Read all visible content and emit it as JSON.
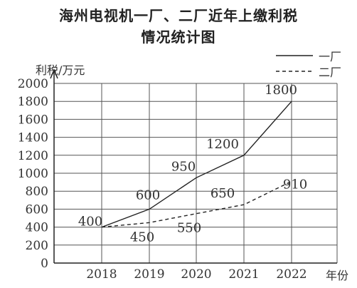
{
  "title": {
    "line1": "海州电视机一厂、二厂近年上缴利税",
    "line2": "情况统计图"
  },
  "chart_data": {
    "type": "line",
    "title": "海州电视机一厂、二厂近年上缴利税情况统计图",
    "xlabel": "年份",
    "ylabel": "利税/万元",
    "categories": [
      "2018",
      "2019",
      "2020",
      "2021",
      "2022"
    ],
    "ylim": [
      0,
      2000
    ],
    "yticks": [
      "0",
      "200",
      "400",
      "600",
      "800",
      "1000",
      "1200",
      "1400",
      "1600",
      "1800",
      "2000"
    ],
    "grid": true,
    "legend_position": "top-right",
    "series": [
      {
        "name": "一厂",
        "style": "solid",
        "values": [
          400,
          600,
          950,
          1200,
          1800
        ],
        "labels": [
          "400",
          "600",
          "950",
          "1200",
          "1800"
        ]
      },
      {
        "name": "二厂",
        "style": "dashed",
        "values": [
          400,
          450,
          550,
          650,
          910
        ],
        "labels": [
          "",
          "450",
          "550",
          "650",
          "910"
        ]
      }
    ]
  }
}
